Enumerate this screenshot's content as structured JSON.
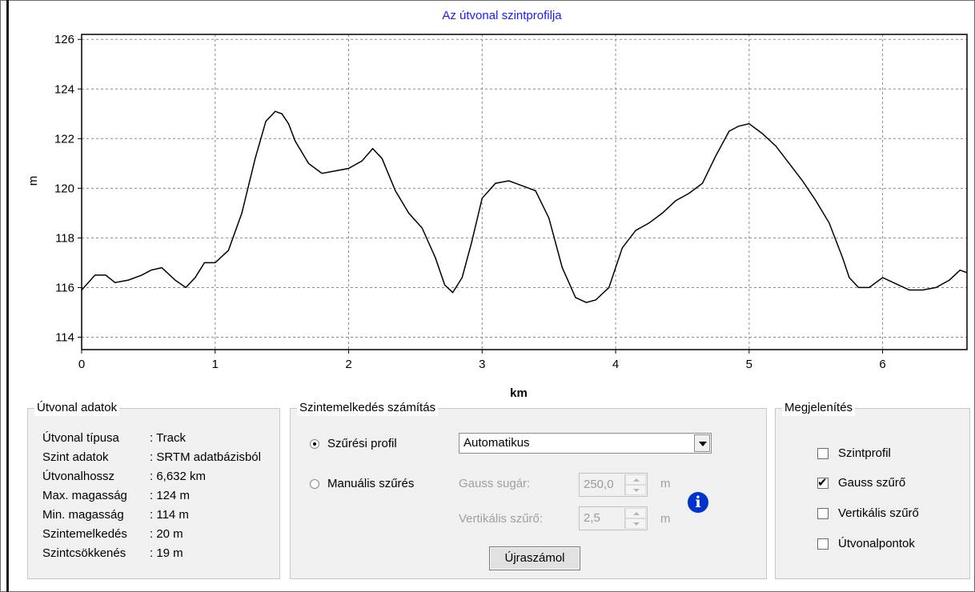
{
  "chart_data": {
    "type": "line",
    "title": "Az útvonal szintprofilja",
    "xlabel": "km",
    "ylabel": "m",
    "xlim": [
      0,
      6.632
    ],
    "ylim": [
      113.5,
      126.2
    ],
    "xticks": [
      0,
      1,
      2,
      3,
      4,
      5,
      6
    ],
    "yticks": [
      114,
      116,
      118,
      120,
      122,
      124,
      126
    ],
    "grid": true,
    "series": [
      {
        "color": "#000000",
        "x": [
          0,
          0.1,
          0.18,
          0.25,
          0.35,
          0.45,
          0.52,
          0.6,
          0.7,
          0.78,
          0.85,
          0.92,
          1.0,
          1.1,
          1.2,
          1.3,
          1.38,
          1.45,
          1.5,
          1.55,
          1.6,
          1.7,
          1.8,
          1.9,
          2.0,
          2.1,
          2.18,
          2.25,
          2.35,
          2.45,
          2.55,
          2.65,
          2.72,
          2.78,
          2.85,
          2.92,
          3.0,
          3.1,
          3.2,
          3.3,
          3.4,
          3.5,
          3.6,
          3.7,
          3.78,
          3.85,
          3.95,
          4.05,
          4.15,
          4.25,
          4.35,
          4.45,
          4.55,
          4.65,
          4.75,
          4.85,
          4.92,
          5.0,
          5.1,
          5.2,
          5.3,
          5.4,
          5.5,
          5.6,
          5.7,
          5.75,
          5.82,
          5.9,
          6.0,
          6.08,
          6.2,
          6.3,
          6.4,
          6.5,
          6.58,
          6.632
        ],
        "y": [
          115.9,
          116.5,
          116.5,
          116.2,
          116.3,
          116.5,
          116.7,
          116.8,
          116.3,
          116.0,
          116.4,
          117.0,
          117.0,
          117.5,
          119.0,
          121.2,
          122.7,
          123.1,
          123.0,
          122.6,
          121.9,
          121.0,
          120.6,
          120.7,
          120.8,
          121.1,
          121.6,
          121.2,
          119.9,
          119.0,
          118.4,
          117.2,
          116.1,
          115.8,
          116.4,
          117.8,
          119.6,
          120.2,
          120.3,
          120.1,
          119.9,
          118.8,
          116.8,
          115.6,
          115.4,
          115.5,
          116.0,
          117.6,
          118.3,
          118.6,
          119.0,
          119.5,
          119.8,
          120.2,
          121.3,
          122.3,
          122.5,
          122.6,
          122.2,
          121.7,
          121.0,
          120.3,
          119.5,
          118.6,
          117.2,
          116.4,
          116.0,
          116.0,
          116.4,
          116.2,
          115.9,
          115.9,
          116.0,
          116.3,
          116.7,
          116.6
        ]
      }
    ]
  },
  "route": {
    "title": "Útvonal adatok",
    "rows": [
      {
        "label": "Útvonal típusa",
        "value": ": Track"
      },
      {
        "label": "Szint adatok",
        "value": ": SRTM adatbázisból"
      },
      {
        "label": "Útvonalhossz",
        "value": ": 6,632 km"
      },
      {
        "label": "Max. magasság",
        "value": ": 124 m"
      },
      {
        "label": "Min. magasság",
        "value": ": 114 m"
      },
      {
        "label": "Szintemelkedés",
        "value": ": 20 m"
      },
      {
        "label": "Szintcsökkenés",
        "value": ": 19 m"
      }
    ]
  },
  "elevation": {
    "title": "Szintemelkedés számítás",
    "filter_profile_label": "Szűrési profil",
    "manual_filter_label": "Manuális szűrés",
    "filter_profile_selected": true,
    "profile_value": "Automatikus",
    "gauss_label": "Gauss sugár:",
    "gauss_value": "250,0",
    "gauss_unit": "m",
    "vertical_label": "Vertikális szűrő:",
    "vertical_value": "2,5",
    "vertical_unit": "m",
    "info_glyph": "i",
    "recalc_label": "Újraszámol"
  },
  "display": {
    "title": "Megjelenítés",
    "options": [
      {
        "label": "Szintprofil",
        "checked": false
      },
      {
        "label": "Gauss szűrő",
        "checked": true
      },
      {
        "label": "Vertikális szűrő",
        "checked": false
      },
      {
        "label": "Útvonalpontok",
        "checked": false
      }
    ]
  },
  "colors": {
    "title": "#1a1aff",
    "line": "#000000",
    "info_icon": "#0033cc"
  },
  "icons": {
    "dropdown": "chevron-down-icon",
    "info": "info-icon",
    "check": "checkmark-icon"
  }
}
